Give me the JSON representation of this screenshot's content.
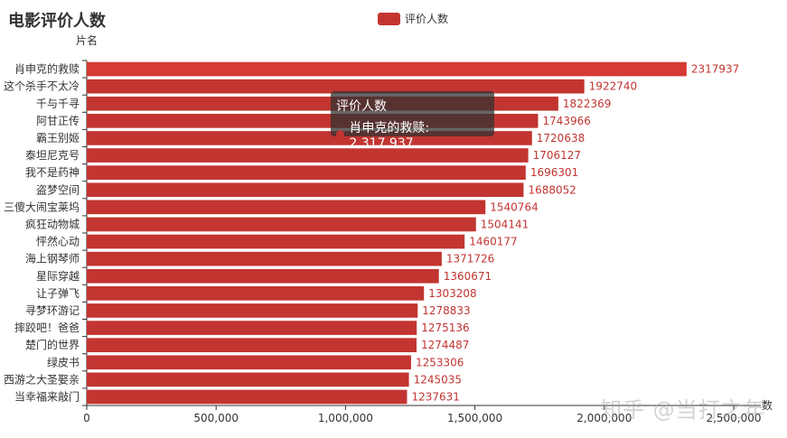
{
  "chart_data": {
    "type": "bar",
    "orientation": "horizontal",
    "title": "电影评价人数",
    "ylabel": "片名",
    "xlabel": "数",
    "legend": [
      "评价人数"
    ],
    "legend_placement": "top-center",
    "color": "#c23531",
    "xlim": [
      0,
      2500000
    ],
    "x_ticks": [
      0,
      500000,
      1000000,
      1500000,
      2000000,
      2500000
    ],
    "x_tick_labels": [
      "0",
      "500,000",
      "1,000,000",
      "1,500,000",
      "2,000,000",
      "2,500,000"
    ],
    "grid": false,
    "categories": [
      "肖申克的救赎",
      "这个杀手不太冷",
      "千与千寻",
      "阿甘正传",
      "霸王别姬",
      "泰坦尼克号",
      "我不是药神",
      "盗梦空间",
      "三傻大闹宝莱坞",
      "疯狂动物城",
      "怦然心动",
      "海上钢琴师",
      "星际穿越",
      "让子弹飞",
      "寻梦环游记",
      "摔跤吧！爸爸",
      "楚门的世界",
      "绿皮书",
      "西游之大圣娶亲",
      "当幸福来敲门"
    ],
    "series": [
      {
        "name": "评价人数",
        "values": [
          2317937,
          1922740,
          1822369,
          1743966,
          1720638,
          1706127,
          1696301,
          1688052,
          1540764,
          1504141,
          1460177,
          1371726,
          1360671,
          1303208,
          1278833,
          1275136,
          1274487,
          1253306,
          1245035,
          1237631
        ]
      }
    ]
  },
  "tooltip": {
    "title": "评价人数",
    "text": "肖申克的救赎: 2,317,937"
  },
  "watermark": "知乎 @当打之年"
}
